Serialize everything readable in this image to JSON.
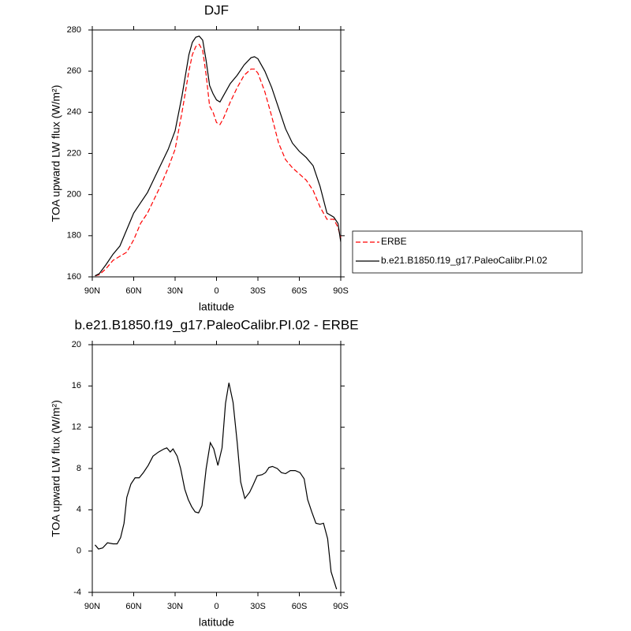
{
  "chart_data": [
    {
      "type": "line",
      "title": "DJF",
      "xlabel": "latitude",
      "ylabel": "TOA upward LW flux (W/m²)",
      "x": [
        88,
        85,
        80,
        75,
        70,
        65,
        60,
        55,
        50,
        45,
        40,
        35,
        30,
        25,
        20,
        17.5,
        15,
        12.5,
        10,
        7.5,
        5,
        2.5,
        0,
        -2.5,
        -5,
        -10,
        -15,
        -20,
        -25,
        -27.5,
        -30,
        -35,
        -40,
        -45,
        -50,
        -55,
        -60,
        -65,
        -70,
        -75,
        -80,
        -85,
        -88,
        -90
      ],
      "series": [
        {
          "name": "ERBE",
          "color": "#ff0000",
          "linestyle": "dashed",
          "values": [
            160.5,
            161,
            164,
            168,
            170,
            172,
            178,
            186,
            191,
            198,
            205,
            213,
            222,
            240,
            260,
            268,
            272,
            273,
            270,
            258,
            243,
            240,
            235,
            234,
            237,
            245,
            252,
            258,
            261,
            261,
            259,
            250,
            238,
            225,
            217,
            213,
            210,
            207,
            202,
            194,
            188,
            188,
            184,
            179
          ]
        },
        {
          "name": "b.e21.B1850.f19_g17.PaleoCalibr.PI.02",
          "color": "#000000",
          "linestyle": "solid",
          "values": [
            160.5,
            161.5,
            166,
            171,
            175,
            183,
            191,
            196,
            201,
            208,
            215,
            222,
            231,
            248,
            268,
            274,
            276.5,
            277,
            275,
            265,
            253,
            249,
            246,
            245,
            248,
            254,
            258,
            263,
            266.5,
            267,
            266,
            260,
            252,
            242,
            232,
            225,
            221,
            218,
            214,
            204,
            191,
            189,
            186,
            177
          ]
        }
      ],
      "xlim": [
        90,
        -90
      ],
      "ylim": [
        160,
        280
      ],
      "xticks": [
        {
          "value": 90,
          "label": "90N"
        },
        {
          "value": 60,
          "label": "60N"
        },
        {
          "value": 30,
          "label": "30N"
        },
        0,
        {
          "value": -30,
          "label": "30S"
        },
        {
          "value": -60,
          "label": "60S"
        },
        {
          "value": -90,
          "label": "90S"
        }
      ],
      "yticks": [
        160,
        180,
        200,
        220,
        240,
        260,
        280
      ],
      "legend": "right"
    },
    {
      "type": "line",
      "title": "b.e21.B1850.f19_g17.PaleoCalibr.PI.02 - ERBE",
      "xlabel": "latitude",
      "ylabel": "TOA upward LW flux (W/m²)",
      "x": [
        88,
        85.5,
        82.5,
        79,
        75,
        72,
        69.5,
        67,
        65,
        62,
        59,
        56,
        53,
        49.5,
        46,
        42,
        38,
        36,
        33.5,
        31.5,
        28.5,
        26,
        23,
        20.5,
        18,
        15.5,
        13,
        10.5,
        7.5,
        4.5,
        2,
        -1,
        -4,
        -6.5,
        -9,
        -12,
        -15,
        -17.5,
        -20.5,
        -24,
        -26.5,
        -29.5,
        -33,
        -35.5,
        -38,
        -40.5,
        -44,
        -47,
        -50,
        -53.5,
        -57,
        -60.5,
        -63.5,
        -66,
        -69,
        -72,
        -75,
        -77.5,
        -80.5,
        -83,
        -87
      ],
      "series": [
        {
          "name": "b.e21.B1850.f19_g17.PaleoCalibr.PI.02 - ERBE",
          "color": "#000000",
          "linestyle": "solid",
          "values": [
            0.6,
            0.2,
            0.3,
            0.8,
            0.7,
            0.7,
            1.3,
            2.7,
            5.2,
            6.5,
            7.1,
            7.1,
            7.6,
            8.3,
            9.2,
            9.6,
            9.9,
            10,
            9.6,
            9.9,
            9.2,
            8.0,
            6.0,
            5.0,
            4.3,
            3.8,
            3.7,
            4.4,
            8.0,
            10.5,
            9.9,
            8.3,
            10,
            14.3,
            16.3,
            14.4,
            10.5,
            6.7,
            5.1,
            5.7,
            6.4,
            7.3,
            7.4,
            7.6,
            8.1,
            8.2,
            8.0,
            7.6,
            7.5,
            7.8,
            7.8,
            7.6,
            7.0,
            5.0,
            3.8,
            2.7,
            2.6,
            2.7,
            1.2,
            -2.0,
            -3.7
          ]
        }
      ],
      "xlim": [
        90,
        -90
      ],
      "ylim": [
        -4,
        20
      ],
      "xticks": [
        {
          "value": 90,
          "label": "90N"
        },
        {
          "value": 60,
          "label": "60N"
        },
        {
          "value": 30,
          "label": "30N"
        },
        0,
        {
          "value": -30,
          "label": "30S"
        },
        {
          "value": -60,
          "label": "60S"
        },
        {
          "value": -90,
          "label": "90S"
        }
      ],
      "yticks": [
        -4,
        0,
        4,
        8,
        12,
        16,
        20
      ]
    }
  ]
}
